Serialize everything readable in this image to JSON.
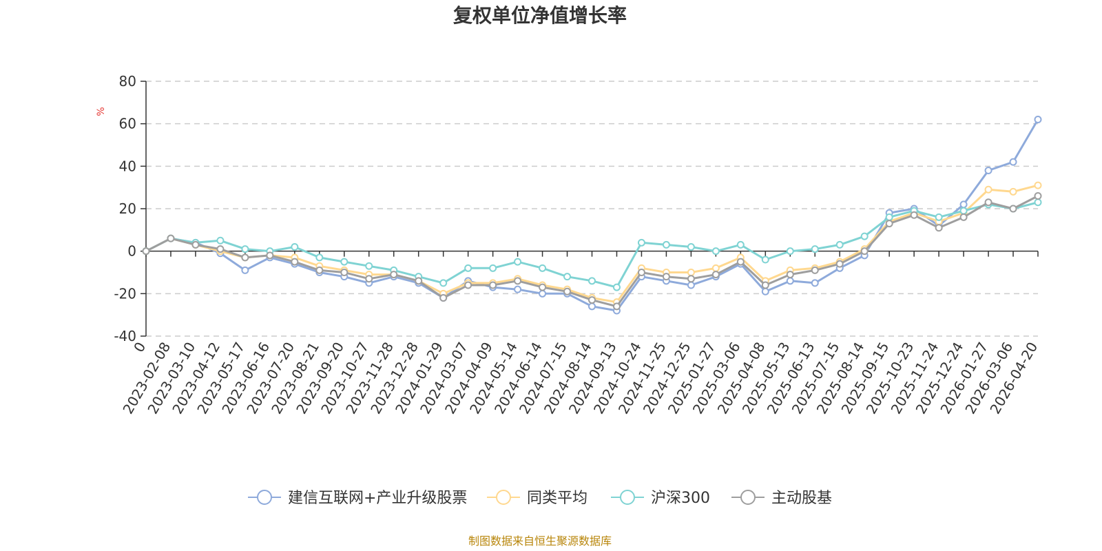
{
  "chart_data": {
    "type": "line",
    "title": "复权单位净值增长率",
    "ylabel": "%",
    "ylim": [
      -40,
      80
    ],
    "yticks": [
      "80",
      "60",
      "40",
      "20",
      "0",
      "-20",
      "-40"
    ],
    "grid": true,
    "legend_position": "bottom",
    "categories": [
      "0",
      "2023-02-08",
      "2023-03-10",
      "2023-04-12",
      "2023-05-17",
      "2023-06-16",
      "2023-07-20",
      "2023-08-21",
      "2023-09-20",
      "2023-10-27",
      "2023-11-28",
      "2023-12-28",
      "2024-01-29",
      "2024-03-07",
      "2024-04-09",
      "2024-05-14",
      "2024-06-14",
      "2024-07-15",
      "2024-08-14",
      "2024-09-13",
      "2024-10-24",
      "2024-11-25",
      "2024-12-25",
      "2025-01-27",
      "2025-03-06",
      "2025-04-08",
      "2025-05-13",
      "2025-06-13",
      "2025-07-15",
      "2025-08-14",
      "2025-09-15",
      "2025-10-23",
      "2025-11-24",
      "2025-12-24",
      "2026-01-27",
      "2026-03-06",
      "2026-04-20"
    ],
    "series": [
      {
        "name": "建信互联网+产业升级股票",
        "color": "#8eaadb",
        "values": [
          0,
          6,
          4,
          -1,
          -9,
          -3,
          -6,
          -10,
          -12,
          -15,
          -12,
          -15,
          -22,
          -14,
          -17,
          -18,
          -20,
          -20,
          -26,
          -28,
          -12,
          -14,
          -16,
          -12,
          -6,
          -19,
          -14,
          -15,
          -8,
          -2,
          18,
          20,
          12,
          22,
          38,
          42,
          62
        ]
      },
      {
        "name": "同类平均",
        "color": "#ffd88f",
        "values": [
          0,
          6,
          3,
          0,
          -3,
          -2,
          -3,
          -7,
          -9,
          -11,
          -11,
          -14,
          -20,
          -15,
          -15,
          -13,
          -16,
          -18,
          -22,
          -24,
          -8,
          -10,
          -10,
          -8,
          -3,
          -14,
          -9,
          -8,
          -5,
          1,
          14,
          18,
          14,
          18,
          29,
          28,
          31
        ]
      },
      {
        "name": "沪深300",
        "color": "#7fd3d3",
        "values": [
          0,
          6,
          4,
          5,
          1,
          0,
          2,
          -3,
          -5,
          -7,
          -9,
          -12,
          -15,
          -8,
          -8,
          -5,
          -8,
          -12,
          -14,
          -17,
          4,
          3,
          2,
          0,
          3,
          -4,
          0,
          1,
          3,
          7,
          16,
          19,
          16,
          19,
          22,
          20,
          23
        ]
      },
      {
        "name": "主动股基",
        "color": "#9e9e9e",
        "values": [
          0,
          6,
          3,
          1,
          -3,
          -2,
          -5,
          -9,
          -10,
          -13,
          -11,
          -14,
          -22,
          -16,
          -16,
          -14,
          -17,
          -19,
          -23,
          -26,
          -10,
          -12,
          -13,
          -11,
          -5,
          -16,
          -11,
          -9,
          -6,
          0,
          13,
          17,
          11,
          16,
          23,
          20,
          26
        ]
      }
    ]
  },
  "footer": {
    "source": "制图数据来自恒生聚源数据库"
  }
}
